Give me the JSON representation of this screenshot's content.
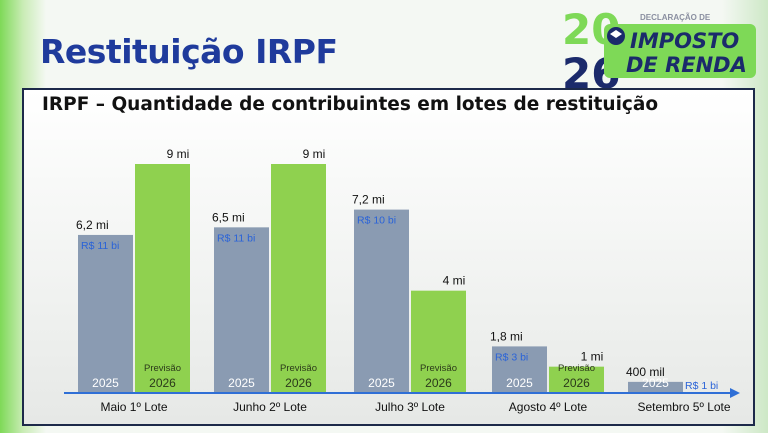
{
  "page": {
    "title": "Restituição IRPF"
  },
  "logo": {
    "small_text": "DECLARAÇÃO DE",
    "line1": "IMPOSTO",
    "line2": "DE RENDA",
    "year_top": "20",
    "year_bottom": "26",
    "colors": {
      "green": "#7ed957",
      "navy": "#1b2a6b"
    }
  },
  "colors": {
    "bar_2025": "#8a9bb2",
    "bar_2026": "#8fd14f",
    "title_blue": "#1f3b9c",
    "amount_blue": "#2a63d8",
    "axis_arrow": "#2f6fd6"
  },
  "chart_data": {
    "type": "bar",
    "title": "IRPF – Quantidade de contribuintes em lotes de restituição",
    "categories": [
      "Maio 1º Lote",
      "Junho 2º Lote",
      "Julho 3º Lote",
      "Agosto 4º Lote",
      "Setembro   5º Lote"
    ],
    "series": [
      {
        "name": "2025",
        "values": [
          6.2,
          6.5,
          7.2,
          1.8,
          0.4
        ],
        "labels": [
          "6,2 mi",
          "6,5 mi",
          "7,2 mi",
          "1,8 mi",
          "400 mil"
        ],
        "amounts": [
          "R$ 11 bi",
          "R$ 11 bi",
          "R$ 10 bi",
          "R$ 3 bi",
          "R$ 1 bi"
        ]
      },
      {
        "name": "2026",
        "sublabel": "Previsão",
        "values": [
          9,
          9,
          4,
          1,
          null
        ],
        "labels": [
          "9 mi",
          "9 mi",
          "4 mi",
          "1 mi",
          null
        ]
      }
    ],
    "ylim": [
      0,
      9.5
    ],
    "grid": false,
    "legend": "none"
  }
}
